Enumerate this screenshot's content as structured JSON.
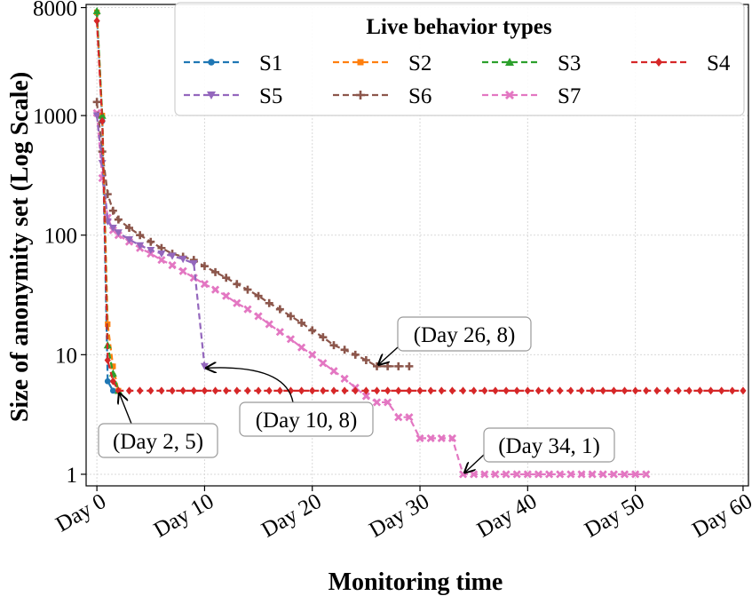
{
  "chart_data": {
    "type": "line",
    "title": "",
    "xlabel": "Monitoring time",
    "ylabel": "Size of anonymity set (Log Scale)",
    "yscale": "log",
    "xlim": [
      -1,
      60.5
    ],
    "ylim": [
      0.8,
      8500
    ],
    "x_ticks": [
      0,
      10,
      20,
      30,
      40,
      50,
      60
    ],
    "x_tick_labels": [
      "Day 0",
      "Day 10",
      "Day 20",
      "Day 30",
      "Day 40",
      "Day 50",
      "Day 60"
    ],
    "y_ticks": [
      1,
      10,
      100,
      1000,
      8000
    ],
    "y_tick_labels": [
      "1",
      "10",
      "100",
      "1000",
      "8000"
    ],
    "grid": true,
    "legend": {
      "title": "Live behavior types",
      "placement": "top-right"
    },
    "series": [
      {
        "name": "S1",
        "color": "#1f77b4",
        "marker": "circle",
        "x": [
          0,
          0.5,
          1,
          1.5,
          2
        ],
        "y": [
          7200,
          900,
          6,
          5,
          5
        ]
      },
      {
        "name": "S2",
        "color": "#ff7f0e",
        "marker": "square",
        "x": [
          0,
          0.5,
          1,
          1.5,
          2
        ],
        "y": [
          7300,
          1000,
          18,
          8,
          5
        ]
      },
      {
        "name": "S3",
        "color": "#2ca02c",
        "marker": "triangle-up",
        "x": [
          0,
          0.5,
          1,
          1.5,
          2
        ],
        "y": [
          7500,
          1000,
          12,
          7,
          5
        ]
      },
      {
        "name": "S4",
        "color": "#d62728",
        "marker": "diamond",
        "x": [
          0,
          0.5,
          1,
          1.5,
          2,
          3,
          4,
          5,
          6,
          7,
          8,
          9,
          10,
          11,
          12,
          13,
          14,
          15,
          16,
          17,
          18,
          19,
          20,
          21,
          22,
          23,
          24,
          25,
          26,
          27,
          28,
          29,
          30,
          31,
          32,
          33,
          34,
          35,
          36,
          37,
          38,
          39,
          40,
          41,
          42,
          43,
          44,
          45,
          46,
          47,
          48,
          49,
          50,
          51,
          52,
          53,
          54,
          55,
          56,
          57,
          58,
          59,
          60
        ],
        "y": [
          6200,
          900,
          9,
          6,
          5,
          5,
          5,
          5,
          5,
          5,
          5,
          5,
          5,
          5,
          5,
          5,
          5,
          5,
          5,
          5,
          5,
          5,
          5,
          5,
          5,
          5,
          5,
          5,
          5,
          5,
          5,
          5,
          5,
          5,
          5,
          5,
          5,
          5,
          5,
          5,
          5,
          5,
          5,
          5,
          5,
          5,
          5,
          5,
          5,
          5,
          5,
          5,
          5,
          5,
          5,
          5,
          5,
          5,
          5,
          5,
          5,
          5,
          5
        ]
      },
      {
        "name": "S5",
        "color": "#9467bd",
        "marker": "triangle-down",
        "x": [
          0,
          0.5,
          1,
          1.5,
          2,
          3,
          4,
          5,
          6,
          7,
          8,
          9,
          10
        ],
        "y": [
          1000,
          400,
          130,
          115,
          105,
          92,
          82,
          75,
          70,
          67,
          63,
          58,
          8
        ]
      },
      {
        "name": "S6",
        "color": "#8c564b",
        "marker": "plus",
        "x": [
          0,
          0.5,
          1,
          1.5,
          2,
          3,
          4,
          5,
          6,
          7,
          8,
          9,
          10,
          11,
          12,
          13,
          14,
          15,
          16,
          17,
          18,
          19,
          20,
          21,
          22,
          23,
          24,
          25,
          26,
          27,
          28,
          29
        ],
        "y": [
          1300,
          500,
          220,
          160,
          135,
          115,
          100,
          88,
          78,
          70,
          66,
          62,
          55,
          49,
          44,
          39,
          35,
          31,
          27,
          24,
          21,
          18.5,
          16,
          14,
          12,
          11,
          10,
          9,
          8,
          8,
          8,
          8
        ]
      },
      {
        "name": "S7",
        "color": "#e377c2",
        "marker": "x",
        "x": [
          0,
          0.5,
          1,
          1.5,
          2,
          3,
          4,
          5,
          6,
          7,
          8,
          9,
          10,
          11,
          12,
          13,
          14,
          15,
          16,
          17,
          18,
          19,
          20,
          21,
          22,
          23,
          24,
          25,
          26,
          27,
          28,
          29,
          30,
          31,
          32,
          33,
          34,
          35,
          36,
          37,
          38,
          39,
          40,
          41,
          42,
          43,
          44,
          45,
          46,
          47,
          48,
          49,
          50,
          51
        ],
        "y": [
          1050,
          300,
          140,
          110,
          100,
          88,
          78,
          70,
          62,
          56,
          50,
          44,
          39,
          35,
          31,
          27,
          24,
          21,
          18,
          15.5,
          13.5,
          11.5,
          10,
          8.5,
          7.3,
          6.3,
          5.3,
          4.5,
          4,
          4,
          3,
          3,
          2,
          2,
          2,
          2,
          1,
          1,
          1,
          1,
          1,
          1,
          1,
          1,
          1,
          1,
          1,
          1,
          1,
          1,
          1,
          1,
          1,
          1
        ]
      }
    ],
    "annotations": [
      {
        "text": "(Day 2, 5)",
        "x": 2,
        "y": 5
      },
      {
        "text": "(Day 10, 8)",
        "x": 10,
        "y": 8
      },
      {
        "text": "(Day 26, 8)",
        "x": 26,
        "y": 8
      },
      {
        "text": "(Day 34, 1)",
        "x": 34,
        "y": 1
      }
    ]
  }
}
